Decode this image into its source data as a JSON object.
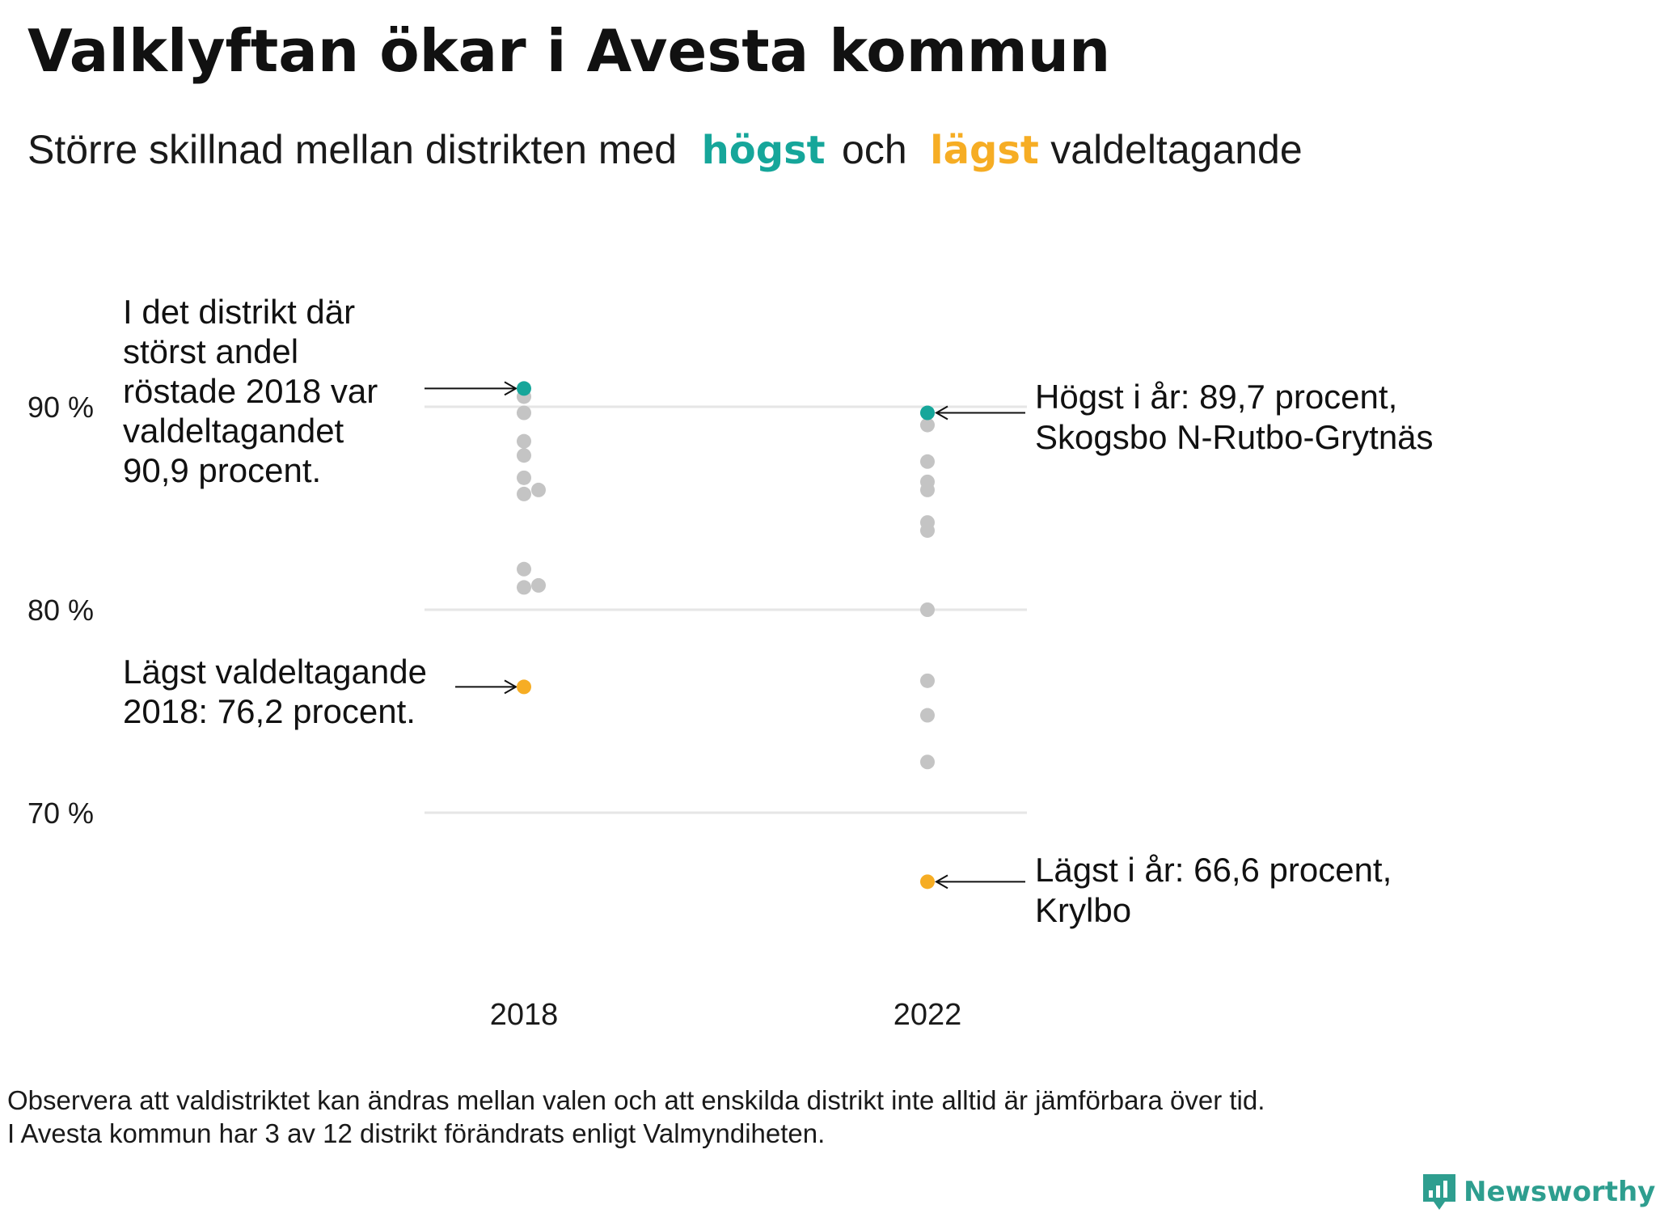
{
  "chart_data": {
    "type": "scatter",
    "title": "Valklyftan ökar i Avesta kommun",
    "subtitle": {
      "part1": "Större  skillnad  mellan  distrikten   med",
      "highest_word": "högst",
      "part2": "och",
      "lowest_word": "lägst",
      "part3": "valdeltagande"
    },
    "y_axis": {
      "min": 60,
      "max": 95,
      "ticks": [
        90,
        80,
        70
      ],
      "tick_labels": [
        "90 %",
        "80 %",
        "70 %"
      ],
      "gridlines": true
    },
    "x_axis": {
      "categories": [
        "2018",
        "2022"
      ]
    },
    "series": [
      {
        "name": "2018",
        "x": "2018",
        "values": [
          90.9,
          90.5,
          89.7,
          88.3,
          87.6,
          86.5,
          85.7,
          85.9,
          82.0,
          81.1,
          81.2,
          76.2
        ],
        "offsets": [
          0,
          0,
          0,
          0,
          0,
          0,
          0,
          1,
          0,
          0,
          1,
          0
        ]
      },
      {
        "name": "2022",
        "x": "2022",
        "values": [
          89.7,
          89.1,
          87.3,
          86.3,
          85.9,
          84.3,
          83.9,
          80.0,
          76.5,
          74.8,
          72.5,
          66.6
        ],
        "offsets": [
          0,
          0,
          0,
          0,
          0,
          0,
          0,
          0,
          0,
          0,
          0,
          0
        ]
      }
    ],
    "highlights": {
      "max_2018": 90.9,
      "min_2018": 76.2,
      "max_2022": 89.7,
      "min_2022": 66.6
    },
    "annotations": {
      "max_2018": [
        "I det distrikt där",
        "störst andel",
        "röstade 2018 var",
        "valdeltagandet",
        "90,9 procent."
      ],
      "min_2018": [
        "Lägst valdeltagande",
        "2018: 76,2 procent."
      ],
      "max_2022": [
        "Högst i år: 89,7 procent,",
        "Skogsbo N-Rutbo-Grytnäs"
      ],
      "min_2022": [
        "Lägst i år: 66,6 procent,",
        "Krylbo"
      ]
    },
    "footnote": [
      "Observera att valdistriktet kan ändras mellan valen och att enskilda distrikt inte alltid är jämförbara över tid.",
      "I Avesta kommun har 3 av 12 distrikt förändrats enligt Valmyndiheten."
    ],
    "brand": "Newsworthy",
    "colors": {
      "highest": "#16a69a",
      "lowest": "#f6ad24",
      "other": "#c4c4c4",
      "grid": "#e6e6e6",
      "text": "#1a1a1a",
      "brand": "#2e9e8f"
    }
  }
}
